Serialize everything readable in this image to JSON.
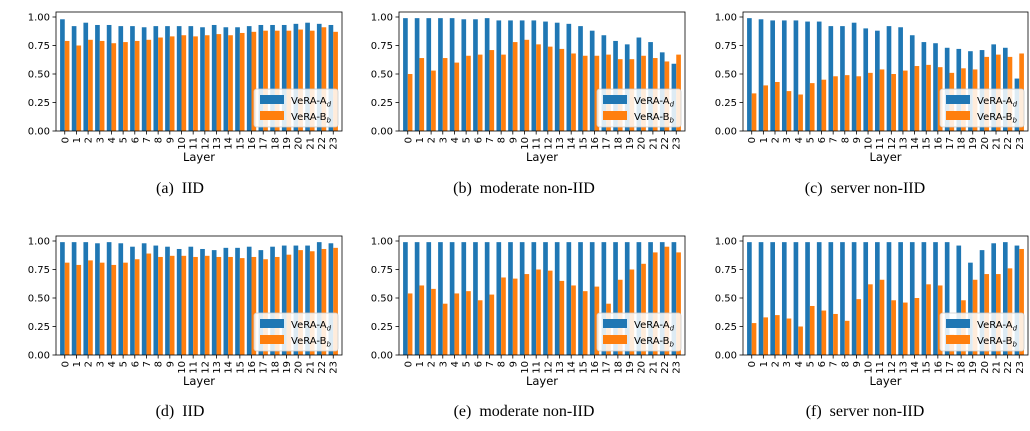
{
  "legend_position": "lower-right",
  "colors": {
    "series_a": "#1f77b4",
    "series_b": "#ff7f0e"
  },
  "chart_data": [
    {
      "type": "bar",
      "caption": "(a)  IID",
      "xlabel": "Layer",
      "ylabel": "",
      "ylim": [
        0,
        1.0
      ],
      "yticks": [
        "0.00",
        "0.25",
        "0.50",
        "0.75",
        "1.00"
      ],
      "categories": [
        "0",
        "1",
        "2",
        "3",
        "4",
        "5",
        "6",
        "7",
        "8",
        "9",
        "10",
        "11",
        "12",
        "13",
        "14",
        "15",
        "16",
        "17",
        "18",
        "19",
        "20",
        "21",
        "22",
        "23"
      ],
      "series": [
        {
          "name": "VeRA-A",
          "sub": "d",
          "values": [
            0.98,
            0.92,
            0.95,
            0.93,
            0.93,
            0.92,
            0.92,
            0.91,
            0.92,
            0.92,
            0.92,
            0.92,
            0.91,
            0.93,
            0.91,
            0.91,
            0.92,
            0.93,
            0.93,
            0.93,
            0.94,
            0.95,
            0.94,
            0.93
          ]
        },
        {
          "name": "VeRA-B",
          "sub": "b",
          "values": [
            0.79,
            0.75,
            0.8,
            0.79,
            0.77,
            0.78,
            0.79,
            0.8,
            0.82,
            0.83,
            0.84,
            0.83,
            0.84,
            0.85,
            0.84,
            0.86,
            0.87,
            0.88,
            0.88,
            0.88,
            0.89,
            0.88,
            0.91,
            0.87
          ]
        }
      ]
    },
    {
      "type": "bar",
      "caption": "(b)  moderate non-IID",
      "xlabel": "Layer",
      "ylabel": "",
      "ylim": [
        0,
        1.0
      ],
      "yticks": [
        "0.00",
        "0.25",
        "0.50",
        "0.75",
        "1.00"
      ],
      "categories": [
        "0",
        "1",
        "2",
        "3",
        "4",
        "5",
        "6",
        "7",
        "8",
        "9",
        "10",
        "11",
        "12",
        "13",
        "14",
        "15",
        "16",
        "17",
        "18",
        "19",
        "20",
        "21",
        "22",
        "23"
      ],
      "series": [
        {
          "name": "VeRA-A",
          "sub": "d",
          "values": [
            0.99,
            0.99,
            0.99,
            0.99,
            0.99,
            0.98,
            0.98,
            0.99,
            0.97,
            0.97,
            0.97,
            0.97,
            0.96,
            0.95,
            0.94,
            0.92,
            0.88,
            0.84,
            0.79,
            0.76,
            0.82,
            0.78,
            0.69,
            0.59
          ]
        },
        {
          "name": "VeRA-B",
          "sub": "b",
          "values": [
            0.5,
            0.64,
            0.53,
            0.64,
            0.6,
            0.66,
            0.67,
            0.71,
            0.67,
            0.78,
            0.8,
            0.76,
            0.74,
            0.72,
            0.68,
            0.66,
            0.66,
            0.67,
            0.63,
            0.63,
            0.66,
            0.64,
            0.61,
            0.67
          ]
        }
      ]
    },
    {
      "type": "bar",
      "caption": "(c)  server non-IID",
      "xlabel": "Layer",
      "ylabel": "",
      "ylim": [
        0,
        1.0
      ],
      "yticks": [
        "0.00",
        "0.25",
        "0.50",
        "0.75",
        "1.00"
      ],
      "categories": [
        "0",
        "1",
        "2",
        "3",
        "4",
        "5",
        "6",
        "7",
        "8",
        "9",
        "10",
        "11",
        "12",
        "13",
        "14",
        "15",
        "16",
        "17",
        "18",
        "19",
        "20",
        "21",
        "22",
        "23"
      ],
      "series": [
        {
          "name": "VeRA-A",
          "sub": "d",
          "values": [
            0.99,
            0.98,
            0.97,
            0.97,
            0.97,
            0.96,
            0.96,
            0.92,
            0.92,
            0.95,
            0.9,
            0.88,
            0.92,
            0.91,
            0.84,
            0.78,
            0.77,
            0.73,
            0.72,
            0.7,
            0.71,
            0.76,
            0.73,
            0.46
          ]
        },
        {
          "name": "VeRA-B",
          "sub": "b",
          "values": [
            0.33,
            0.4,
            0.43,
            0.35,
            0.32,
            0.42,
            0.45,
            0.48,
            0.49,
            0.48,
            0.51,
            0.54,
            0.5,
            0.53,
            0.57,
            0.58,
            0.56,
            0.51,
            0.55,
            0.54,
            0.65,
            0.67,
            0.65,
            0.68
          ]
        }
      ]
    },
    {
      "type": "bar",
      "caption": "(d)  IID",
      "xlabel": "Layer",
      "ylabel": "",
      "ylim": [
        0,
        1.0
      ],
      "yticks": [
        "0.00",
        "0.25",
        "0.50",
        "0.75",
        "1.00"
      ],
      "categories": [
        "0",
        "1",
        "2",
        "3",
        "4",
        "5",
        "6",
        "7",
        "8",
        "9",
        "10",
        "11",
        "12",
        "13",
        "14",
        "15",
        "16",
        "17",
        "18",
        "19",
        "20",
        "21",
        "22",
        "23"
      ],
      "series": [
        {
          "name": "VeRA-A",
          "sub": "d",
          "values": [
            0.99,
            0.99,
            0.99,
            0.98,
            0.99,
            0.98,
            0.95,
            0.98,
            0.96,
            0.95,
            0.93,
            0.95,
            0.93,
            0.92,
            0.94,
            0.94,
            0.95,
            0.92,
            0.95,
            0.96,
            0.96,
            0.96,
            0.99,
            0.98
          ]
        },
        {
          "name": "VeRA-B",
          "sub": "b",
          "values": [
            0.81,
            0.79,
            0.83,
            0.81,
            0.79,
            0.81,
            0.84,
            0.89,
            0.86,
            0.87,
            0.87,
            0.86,
            0.87,
            0.86,
            0.86,
            0.85,
            0.86,
            0.84,
            0.86,
            0.88,
            0.92,
            0.91,
            0.93,
            0.94
          ]
        }
      ]
    },
    {
      "type": "bar",
      "caption": "(e)  moderate non-IID",
      "xlabel": "Layer",
      "ylabel": "",
      "ylim": [
        0,
        1.0
      ],
      "yticks": [
        "0.00",
        "0.25",
        "0.50",
        "0.75",
        "1.00"
      ],
      "categories": [
        "0",
        "1",
        "2",
        "3",
        "4",
        "5",
        "6",
        "7",
        "8",
        "9",
        "10",
        "11",
        "12",
        "13",
        "14",
        "15",
        "16",
        "17",
        "18",
        "19",
        "20",
        "21",
        "22",
        "23"
      ],
      "series": [
        {
          "name": "VeRA-A",
          "sub": "d",
          "values": [
            0.99,
            0.99,
            0.99,
            0.99,
            0.99,
            0.99,
            0.99,
            0.99,
            0.99,
            0.99,
            0.99,
            0.99,
            0.99,
            0.99,
            0.99,
            0.99,
            0.99,
            0.99,
            0.99,
            0.99,
            0.99,
            0.99,
            0.99,
            0.99
          ]
        },
        {
          "name": "VeRA-B",
          "sub": "b",
          "values": [
            0.54,
            0.61,
            0.58,
            0.45,
            0.54,
            0.56,
            0.48,
            0.53,
            0.68,
            0.67,
            0.71,
            0.75,
            0.74,
            0.65,
            0.61,
            0.56,
            0.6,
            0.45,
            0.66,
            0.75,
            0.8,
            0.9,
            0.95,
            0.9
          ]
        }
      ]
    },
    {
      "type": "bar",
      "caption": "(f)  server non-IID",
      "xlabel": "Layer",
      "ylabel": "",
      "ylim": [
        0,
        1.0
      ],
      "yticks": [
        "0.00",
        "0.25",
        "0.50",
        "0.75",
        "1.00"
      ],
      "categories": [
        "0",
        "1",
        "2",
        "3",
        "4",
        "5",
        "6",
        "7",
        "8",
        "9",
        "10",
        "11",
        "12",
        "13",
        "14",
        "15",
        "16",
        "17",
        "18",
        "19",
        "20",
        "21",
        "22",
        "23"
      ],
      "series": [
        {
          "name": "VeRA-A",
          "sub": "d",
          "values": [
            0.99,
            0.99,
            0.99,
            0.99,
            0.99,
            0.99,
            0.99,
            0.99,
            0.99,
            0.99,
            0.99,
            0.99,
            0.99,
            0.99,
            0.99,
            0.99,
            0.99,
            0.99,
            0.96,
            0.81,
            0.92,
            0.98,
            0.99,
            0.96
          ]
        },
        {
          "name": "VeRA-B",
          "sub": "b",
          "values": [
            0.28,
            0.33,
            0.35,
            0.32,
            0.25,
            0.43,
            0.39,
            0.36,
            0.3,
            0.49,
            0.62,
            0.66,
            0.48,
            0.46,
            0.5,
            0.62,
            0.61,
            0.18,
            0.48,
            0.66,
            0.71,
            0.71,
            0.76,
            0.93
          ]
        }
      ]
    }
  ]
}
